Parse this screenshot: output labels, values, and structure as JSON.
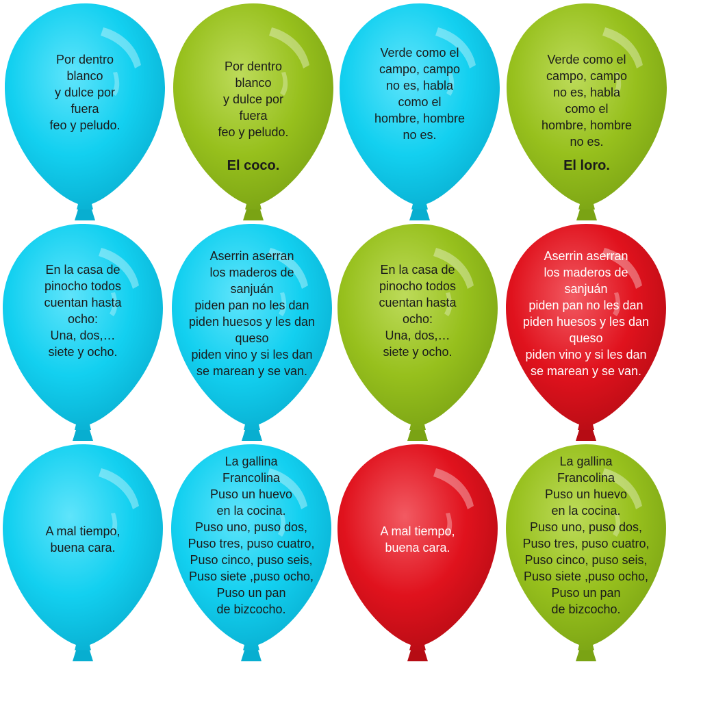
{
  "colors": {
    "blue": "#13d0f0",
    "green": "#97c01d",
    "red": "#e0121d"
  },
  "balloons": [
    {
      "color": "blue",
      "riddle": "Por dentro\nblanco\ny dulce por\nfuera\nfeo y peludo.",
      "answer": ""
    },
    {
      "color": "green",
      "riddle": "Por dentro\nblanco\ny dulce por\nfuera\nfeo y peludo.",
      "answer": "El coco."
    },
    {
      "color": "blue",
      "riddle": "Verde como el\ncampo, campo\nno es, habla\ncomo el\nhombre, hombre\nno es.",
      "answer": ""
    },
    {
      "color": "green",
      "riddle": "Verde como el\ncampo, campo\nno es, habla\ncomo el\nhombre, hombre\nno es.",
      "answer": "El loro."
    },
    {
      "color": "blue",
      "riddle": "En la casa de\npinocho todos\ncuentan hasta\nocho:\nUna, dos,…\nsiete y ocho.",
      "answer": ""
    },
    {
      "color": "blue",
      "riddle": "Aserrin aserran\nlos maderos de\nsanjuán\npiden pan no les dan\npiden huesos y les dan\nqueso\npiden vino y si les dan\nse marean y se van.",
      "answer": ""
    },
    {
      "color": "green",
      "riddle": "En la casa de\npinocho todos\ncuentan hasta\nocho:\nUna, dos,…\nsiete y ocho.",
      "answer": ""
    },
    {
      "color": "red",
      "riddle": "Aserrin aserran\nlos maderos de\nsanjuán\npiden pan no les dan\npiden huesos y les dan\nqueso\npiden vino y si les dan\nse marean y se van.",
      "answer": ""
    },
    {
      "color": "blue",
      "riddle": "A mal tiempo,\nbuena cara.",
      "answer": ""
    },
    {
      "color": "blue",
      "riddle": "La gallina\nFrancolina\nPuso un huevo\nen la cocina.\nPuso uno, puso dos,\nPuso tres, puso cuatro,\nPuso cinco, puso seis,\nPuso siete ,puso ocho,\nPuso un pan\nde bizcocho.",
      "answer": ""
    },
    {
      "color": "red",
      "riddle": "A mal tiempo,\nbuena cara.",
      "answer": ""
    },
    {
      "color": "green",
      "riddle": "La gallina\nFrancolina\nPuso un huevo\nen la cocina.\nPuso uno, puso dos,\nPuso tres, puso cuatro,\nPuso cinco, puso seis,\nPuso siete ,puso ocho,\nPuso un pan\nde bizcocho.",
      "answer": ""
    }
  ]
}
